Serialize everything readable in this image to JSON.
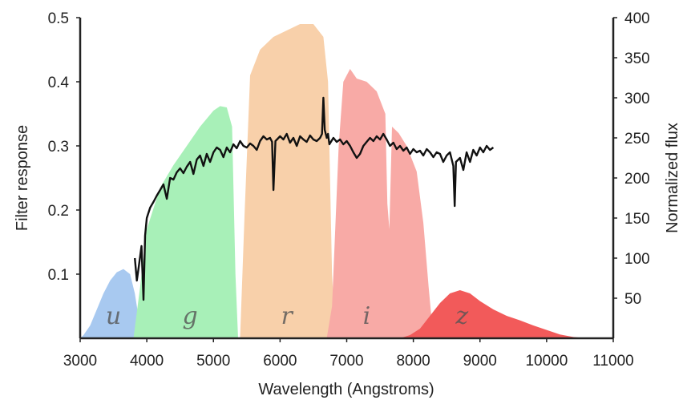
{
  "chart_data": {
    "type": "area",
    "xlabel": "Wavelength (Angstroms)",
    "ylabel_left": "Filter response",
    "ylabel_right": "Normalized flux",
    "xlim": [
      3000,
      11000
    ],
    "ylim_left": [
      0,
      0.5
    ],
    "ylim_right": [
      0,
      400
    ],
    "xticks": [
      "3000",
      "4000",
      "5000",
      "6000",
      "7000",
      "8000",
      "9000",
      "10000",
      "11000"
    ],
    "yticks_left": [
      "0.1",
      "0.2",
      "0.3",
      "0.4",
      "0.5"
    ],
    "yticks_right": [
      "50",
      "100",
      "150",
      "200",
      "250",
      "300",
      "350",
      "400"
    ],
    "grid": false,
    "filters": [
      {
        "name": "u",
        "color": "#a8c9f0",
        "label_x": 3500,
        "label_y": 0.02,
        "points": [
          [
            3000,
            0
          ],
          [
            3050,
            0.005
          ],
          [
            3150,
            0.02
          ],
          [
            3250,
            0.045
          ],
          [
            3350,
            0.07
          ],
          [
            3450,
            0.09
          ],
          [
            3550,
            0.103
          ],
          [
            3650,
            0.108
          ],
          [
            3750,
            0.1
          ],
          [
            3820,
            0.07
          ],
          [
            3880,
            0.03
          ],
          [
            3950,
            0
          ],
          [
            3000,
            0
          ]
        ]
      },
      {
        "name": "g",
        "color": "#a8f0b8",
        "label_x": 4650,
        "label_y": 0.02,
        "points": [
          [
            3800,
            0
          ],
          [
            3900,
            0.08
          ],
          [
            4000,
            0.17
          ],
          [
            4200,
            0.235
          ],
          [
            4400,
            0.27
          ],
          [
            4600,
            0.3
          ],
          [
            4800,
            0.33
          ],
          [
            5000,
            0.355
          ],
          [
            5100,
            0.362
          ],
          [
            5200,
            0.36
          ],
          [
            5280,
            0.33
          ],
          [
            5330,
            0.1
          ],
          [
            5370,
            0
          ],
          [
            3800,
            0
          ]
        ]
      },
      {
        "name": "r",
        "color": "#f8d0aa",
        "label_x": 6100,
        "label_y": 0.02,
        "points": [
          [
            5400,
            0
          ],
          [
            5470,
            0.2
          ],
          [
            5550,
            0.41
          ],
          [
            5700,
            0.45
          ],
          [
            5900,
            0.47
          ],
          [
            6100,
            0.48
          ],
          [
            6300,
            0.49
          ],
          [
            6500,
            0.49
          ],
          [
            6650,
            0.47
          ],
          [
            6720,
            0.4
          ],
          [
            6780,
            0.1
          ],
          [
            6830,
            0
          ],
          [
            5400,
            0
          ]
        ]
      },
      {
        "name": "i",
        "color": "#f8aaa6",
        "label_x": 7300,
        "label_y": 0.02,
        "points": [
          [
            6700,
            0
          ],
          [
            6780,
            0.05
          ],
          [
            6880,
            0.3
          ],
          [
            6950,
            0.4
          ],
          [
            7050,
            0.42
          ],
          [
            7150,
            0.405
          ],
          [
            7300,
            0.4
          ],
          [
            7450,
            0.385
          ],
          [
            7580,
            0.35
          ],
          [
            7610,
            0.21
          ],
          [
            7640,
            0.17
          ],
          [
            7680,
            0.33
          ],
          [
            7780,
            0.32
          ],
          [
            7900,
            0.3
          ],
          [
            8050,
            0.26
          ],
          [
            8150,
            0.18
          ],
          [
            8230,
            0.08
          ],
          [
            8300,
            0
          ],
          [
            6700,
            0
          ]
        ]
      },
      {
        "name": "z",
        "color": "#f25a5a",
        "label_x": 8730,
        "label_y": 0.02,
        "points": [
          [
            7800,
            0
          ],
          [
            7950,
            0.005
          ],
          [
            8100,
            0.015
          ],
          [
            8250,
            0.035
          ],
          [
            8400,
            0.055
          ],
          [
            8550,
            0.07
          ],
          [
            8700,
            0.075
          ],
          [
            8850,
            0.07
          ],
          [
            9000,
            0.058
          ],
          [
            9200,
            0.045
          ],
          [
            9400,
            0.035
          ],
          [
            9600,
            0.028
          ],
          [
            9800,
            0.02
          ],
          [
            10000,
            0.013
          ],
          [
            10200,
            0.006
          ],
          [
            10400,
            0.002
          ],
          [
            10600,
            0
          ],
          [
            7800,
            0
          ]
        ]
      }
    ],
    "spectrum": {
      "color": "#111111",
      "y_axis": "right",
      "points": [
        [
          3820,
          100
        ],
        [
          3850,
          72
        ],
        [
          3880,
          90
        ],
        [
          3920,
          115
        ],
        [
          3950,
          48
        ],
        [
          3975,
          128
        ],
        [
          4000,
          150
        ],
        [
          4050,
          163
        ],
        [
          4100,
          170
        ],
        [
          4150,
          178
        ],
        [
          4200,
          185
        ],
        [
          4250,
          192
        ],
        [
          4300,
          174
        ],
        [
          4350,
          200
        ],
        [
          4400,
          198
        ],
        [
          4450,
          207
        ],
        [
          4500,
          212
        ],
        [
          4550,
          206
        ],
        [
          4600,
          214
        ],
        [
          4650,
          220
        ],
        [
          4700,
          205
        ],
        [
          4750,
          223
        ],
        [
          4800,
          228
        ],
        [
          4850,
          215
        ],
        [
          4900,
          230
        ],
        [
          4950,
          220
        ],
        [
          5000,
          232
        ],
        [
          5050,
          238
        ],
        [
          5100,
          235
        ],
        [
          5150,
          226
        ],
        [
          5200,
          238
        ],
        [
          5250,
          232
        ],
        [
          5300,
          242
        ],
        [
          5350,
          237
        ],
        [
          5400,
          246
        ],
        [
          5450,
          240
        ],
        [
          5500,
          238
        ],
        [
          5550,
          243
        ],
        [
          5600,
          240
        ],
        [
          5650,
          235
        ],
        [
          5700,
          246
        ],
        [
          5750,
          252
        ],
        [
          5800,
          248
        ],
        [
          5850,
          250
        ],
        [
          5880,
          245
        ],
        [
          5900,
          185
        ],
        [
          5930,
          246
        ],
        [
          6000,
          252
        ],
        [
          6050,
          248
        ],
        [
          6100,
          255
        ],
        [
          6150,
          244
        ],
        [
          6200,
          250
        ],
        [
          6250,
          240
        ],
        [
          6300,
          252
        ],
        [
          6350,
          248
        ],
        [
          6400,
          245
        ],
        [
          6450,
          253
        ],
        [
          6500,
          248
        ],
        [
          6550,
          246
        ],
        [
          6600,
          250
        ],
        [
          6630,
          255
        ],
        [
          6650,
          300
        ],
        [
          6670,
          260
        ],
        [
          6700,
          250
        ],
        [
          6720,
          255
        ],
        [
          6740,
          242
        ],
        [
          6800,
          250
        ],
        [
          6850,
          245
        ],
        [
          6900,
          248
        ],
        [
          6950,
          242
        ],
        [
          7000,
          246
        ],
        [
          7050,
          240
        ],
        [
          7100,
          232
        ],
        [
          7150,
          225
        ],
        [
          7200,
          230
        ],
        [
          7250,
          240
        ],
        [
          7300,
          245
        ],
        [
          7350,
          250
        ],
        [
          7400,
          246
        ],
        [
          7450,
          252
        ],
        [
          7500,
          248
        ],
        [
          7550,
          255
        ],
        [
          7600,
          248
        ],
        [
          7650,
          240
        ],
        [
          7700,
          244
        ],
        [
          7750,
          236
        ],
        [
          7800,
          240
        ],
        [
          7850,
          234
        ],
        [
          7900,
          238
        ],
        [
          7950,
          230
        ],
        [
          8000,
          236
        ],
        [
          8050,
          232
        ],
        [
          8100,
          234
        ],
        [
          8150,
          228
        ],
        [
          8200,
          236
        ],
        [
          8250,
          232
        ],
        [
          8300,
          226
        ],
        [
          8350,
          232
        ],
        [
          8400,
          230
        ],
        [
          8450,
          220
        ],
        [
          8500,
          228
        ],
        [
          8550,
          232
        ],
        [
          8600,
          215
        ],
        [
          8620,
          165
        ],
        [
          8640,
          220
        ],
        [
          8700,
          225
        ],
        [
          8750,
          210
        ],
        [
          8800,
          232
        ],
        [
          8850,
          220
        ],
        [
          8900,
          235
        ],
        [
          8950,
          228
        ],
        [
          9000,
          238
        ],
        [
          9050,
          232
        ],
        [
          9100,
          240
        ],
        [
          9150,
          235
        ],
        [
          9200,
          238
        ]
      ]
    }
  }
}
